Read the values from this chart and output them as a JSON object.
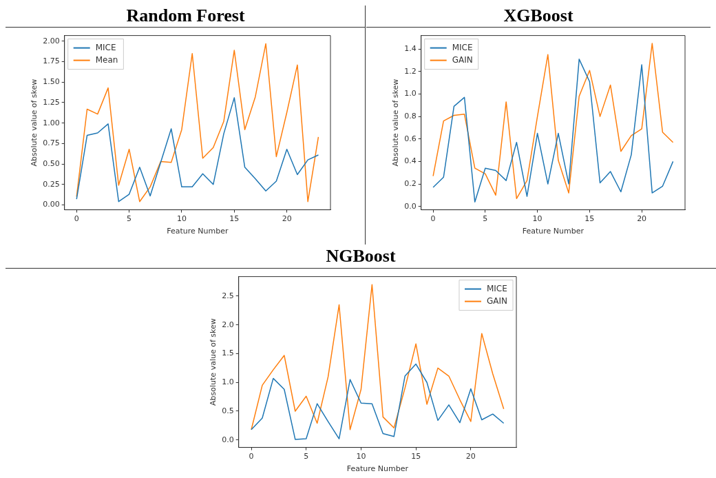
{
  "chart_data": [
    {
      "type": "line",
      "title": "Random Forest",
      "xlabel": "Feature Number",
      "ylabel": "Absolute value of skew",
      "legend": "top left",
      "x": [
        0,
        1,
        2,
        3,
        4,
        5,
        6,
        7,
        8,
        9,
        10,
        11,
        12,
        13,
        14,
        15,
        16,
        17,
        18,
        19,
        20,
        21,
        22,
        23
      ],
      "series": [
        {
          "name": "MICE",
          "color": "#1f77b4",
          "values": [
            0.07,
            0.85,
            0.88,
            0.99,
            0.04,
            0.13,
            0.46,
            0.11,
            0.52,
            0.93,
            0.22,
            0.22,
            0.38,
            0.25,
            0.87,
            1.31,
            0.46,
            0.32,
            0.17,
            0.29,
            0.68,
            0.37,
            0.55,
            0.61
          ]
        },
        {
          "name": "Mean",
          "color": "#ff7f0e",
          "values": [
            0.1,
            1.17,
            1.11,
            1.43,
            0.24,
            0.68,
            0.04,
            0.22,
            0.53,
            0.52,
            0.92,
            1.85,
            0.57,
            0.7,
            1.02,
            1.89,
            0.92,
            1.32,
            1.97,
            0.59,
            1.13,
            1.71,
            0.04,
            0.83
          ]
        }
      ],
      "xlim": [
        -1.15,
        24.15
      ],
      "xticks": [
        0,
        5,
        10,
        15,
        20
      ],
      "ylim": [
        -0.06,
        2.07
      ],
      "yticks": [
        {
          "value": 0,
          "label": "0.00"
        },
        {
          "value": 0.25,
          "label": "0.25"
        },
        {
          "value": 0.5,
          "label": "0.50"
        },
        {
          "value": 0.75,
          "label": "0.75"
        },
        {
          "value": 1,
          "label": "1.00"
        },
        {
          "value": 1.25,
          "label": "1.25"
        },
        {
          "value": 1.5,
          "label": "1.50"
        },
        {
          "value": 1.75,
          "label": "1.75"
        },
        {
          "value": 2,
          "label": "2.00"
        }
      ]
    },
    {
      "type": "line",
      "title": "XGBoost",
      "xlabel": "Feature Number",
      "ylabel": "Absolute value of skew",
      "legend": "top left",
      "x": [
        0,
        1,
        2,
        3,
        4,
        5,
        6,
        7,
        8,
        9,
        10,
        11,
        12,
        13,
        14,
        15,
        16,
        17,
        18,
        19,
        20,
        21,
        22,
        23
      ],
      "series": [
        {
          "name": "MICE",
          "color": "#1f77b4",
          "values": [
            0.17,
            0.26,
            0.89,
            0.97,
            0.04,
            0.34,
            0.32,
            0.23,
            0.57,
            0.09,
            0.65,
            0.2,
            0.65,
            0.2,
            1.31,
            1.11,
            0.21,
            0.31,
            0.13,
            0.46,
            1.26,
            0.12,
            0.18,
            0.4
          ]
        },
        {
          "name": "GAIN",
          "color": "#ff7f0e",
          "values": [
            0.27,
            0.76,
            0.81,
            0.82,
            0.34,
            0.29,
            0.1,
            0.93,
            0.07,
            0.23,
            0.8,
            1.35,
            0.41,
            0.12,
            0.98,
            1.21,
            0.8,
            1.08,
            0.49,
            0.63,
            0.69,
            1.45,
            0.66,
            0.57
          ]
        }
      ],
      "xlim": [
        -1.15,
        24.15
      ],
      "xticks": [
        0,
        5,
        10,
        15,
        20
      ],
      "ylim": [
        -0.03,
        1.52
      ],
      "yticks": [
        {
          "value": 0,
          "label": "0.0"
        },
        {
          "value": 0.2,
          "label": "0.2"
        },
        {
          "value": 0.4,
          "label": "0.4"
        },
        {
          "value": 0.6,
          "label": "0.6"
        },
        {
          "value": 0.8,
          "label": "0.8"
        },
        {
          "value": 1,
          "label": "1.0"
        },
        {
          "value": 1.2,
          "label": "1.2"
        },
        {
          "value": 1.4,
          "label": "1.4"
        }
      ]
    },
    {
      "type": "line",
      "title": "NGBoost",
      "xlabel": "Feature Number",
      "ylabel": "Absolute value of skew",
      "legend": "top right",
      "x": [
        0,
        1,
        2,
        3,
        4,
        5,
        6,
        7,
        8,
        9,
        10,
        11,
        12,
        13,
        14,
        15,
        16,
        17,
        18,
        19,
        20,
        21,
        22,
        23
      ],
      "series": [
        {
          "name": "MICE",
          "color": "#1f77b4",
          "values": [
            0.18,
            0.38,
            1.07,
            0.88,
            0.01,
            0.02,
            0.63,
            0.32,
            0.02,
            1.05,
            0.64,
            0.63,
            0.11,
            0.06,
            1.11,
            1.32,
            1.0,
            0.34,
            0.61,
            0.3,
            0.89,
            0.35,
            0.45,
            0.29
          ]
        },
        {
          "name": "GAIN",
          "color": "#ff7f0e",
          "values": [
            0.18,
            0.95,
            1.22,
            1.47,
            0.5,
            0.76,
            0.29,
            1.1,
            2.35,
            0.18,
            0.88,
            2.7,
            0.4,
            0.21,
            0.9,
            1.67,
            0.62,
            1.25,
            1.11,
            0.7,
            0.32,
            1.85,
            1.15,
            0.54
          ]
        }
      ],
      "xlim": [
        -1.15,
        24.15
      ],
      "xticks": [
        0,
        5,
        10,
        15,
        20
      ],
      "ylim": [
        -0.13,
        2.84
      ],
      "yticks": [
        {
          "value": 0,
          "label": "0.0"
        },
        {
          "value": 0.5,
          "label": "0.5"
        },
        {
          "value": 1,
          "label": "1.0"
        },
        {
          "value": 1.5,
          "label": "1.5"
        },
        {
          "value": 2,
          "label": "2.0"
        },
        {
          "value": 2.5,
          "label": "2.5"
        }
      ]
    }
  ]
}
